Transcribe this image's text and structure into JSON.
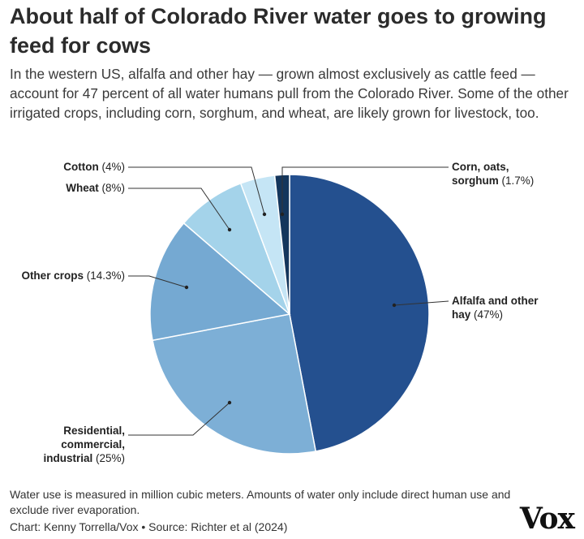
{
  "title": "About half of Colorado River water goes to growing feed for cows",
  "subtitle": "In the western US, alfalfa and other hay — grown almost exclusively as cattle feed — account for 47 percent of all water humans pull from the Colorado River. Some of the other irrigated crops, including corn, sorghum, and wheat, are likely grown for livestock, too.",
  "footnote": "Water use is measured in million cubic meters. Amounts of water only include direct human use and exclude river evaporation.",
  "credit": "Chart: Kenny Torrella/Vox • Source: Richter et al (2024)",
  "logo": "Vox",
  "chart_data": {
    "type": "pie",
    "start": "12 o'clock, clockwise",
    "slices": [
      {
        "label": "Alfalfa and other hay",
        "value": 47,
        "value_label": "(47%)",
        "color": "#24508f",
        "label_lines": [
          "Alfalfa and other",
          "hay"
        ]
      },
      {
        "label": "Residential, commercial, industrial",
        "value": 25,
        "value_label": "(25%)",
        "color": "#7dafd6",
        "label_lines": [
          "Residential,",
          "commercial,",
          "industrial"
        ]
      },
      {
        "label": "Other crops",
        "value": 14.3,
        "value_label": "(14.3%)",
        "color": "#75a9d2",
        "label_lines": [
          "Other crops"
        ]
      },
      {
        "label": "Wheat",
        "value": 8,
        "value_label": "(8%)",
        "color": "#a4d3ea",
        "label_lines": [
          "Wheat"
        ]
      },
      {
        "label": "Cotton",
        "value": 4,
        "value_label": "(4%)",
        "color": "#c5e5f5",
        "label_lines": [
          "Cotton"
        ]
      },
      {
        "label": "Corn, oats, sorghum",
        "value": 1.7,
        "value_label": "(1.7%)",
        "color": "#14365c",
        "label_lines": [
          "Corn, oats,",
          "sorghum"
        ]
      }
    ]
  }
}
